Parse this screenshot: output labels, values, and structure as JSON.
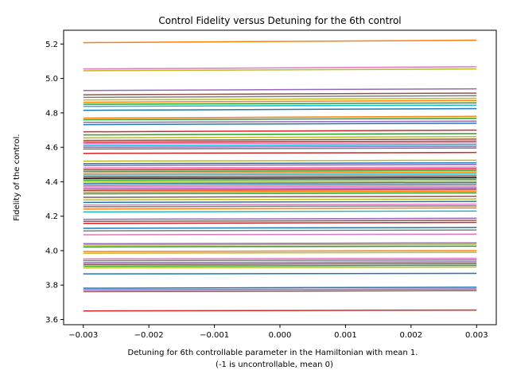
{
  "chart_data": {
    "type": "line",
    "title": "Control Fidelity versus Detuning for the 6th control",
    "xlabel_line1": "Detuning for 6th controllable parameter in the Hamiltonian with mean 1.",
    "xlabel_line2": "(-1 is uncontrollable, mean 0)",
    "ylabel": "Fidelity of the control.",
    "xlim": [
      -0.0033,
      0.0033
    ],
    "ylim": [
      3.57,
      5.28
    ],
    "x_ticks": [
      -0.003,
      -0.002,
      -0.001,
      0.0,
      0.001,
      0.002,
      0.003
    ],
    "x_tick_labels": [
      "−0.003",
      "−0.002",
      "−0.001",
      "0.000",
      "0.001",
      "0.002",
      "0.003"
    ],
    "y_ticks": [
      3.6,
      3.8,
      4.0,
      4.2,
      4.4,
      4.6,
      4.8,
      5.0,
      5.2
    ],
    "y_tick_labels": [
      "3.6",
      "3.8",
      "4.0",
      "4.2",
      "4.4",
      "4.6",
      "4.8",
      "5.0",
      "5.2"
    ],
    "grid": false,
    "legend": "none",
    "palette": [
      "#1f77b4",
      "#ff7f0e",
      "#2ca02c",
      "#d62728",
      "#9467bd",
      "#8c564b",
      "#e377c2",
      "#7f7f7f",
      "#bcbd22",
      "#17becf"
    ],
    "x": [
      -0.003,
      0.003
    ],
    "series": [
      {
        "values": [
          5.208,
          5.222
        ],
        "color": "#ff7f0e"
      },
      {
        "values": [
          5.055,
          5.068
        ],
        "color": "#e377c2"
      },
      {
        "values": [
          5.045,
          5.055
        ],
        "color": "#bcbd22"
      },
      {
        "values": [
          4.93,
          4.94
        ],
        "color": "#9467bd"
      },
      {
        "values": [
          4.905,
          4.915
        ],
        "color": "#8c564b"
      },
      {
        "values": [
          4.89,
          4.9
        ],
        "color": "#7f7f7f"
      },
      {
        "values": [
          4.875,
          4.885
        ],
        "color": "#bcbd22"
      },
      {
        "values": [
          4.862,
          4.872
        ],
        "color": "#ff7f0e"
      },
      {
        "values": [
          4.85,
          4.858
        ],
        "color": "#2ca02c"
      },
      {
        "values": [
          4.838,
          4.845
        ],
        "color": "#17becf"
      },
      {
        "values": [
          4.815,
          4.825
        ],
        "color": "#1f77b4"
      },
      {
        "values": [
          4.77,
          4.78
        ],
        "color": "#ff7f0e"
      },
      {
        "values": [
          4.76,
          4.768
        ],
        "color": "#2ca02c"
      },
      {
        "values": [
          4.745,
          4.752
        ],
        "color": "#9467bd"
      },
      {
        "values": [
          4.732,
          4.74
        ],
        "color": "#1f77b4"
      },
      {
        "values": [
          4.69,
          4.7
        ],
        "color": "#d62728"
      },
      {
        "values": [
          4.672,
          4.68
        ],
        "color": "#2ca02c"
      },
      {
        "values": [
          4.655,
          4.662
        ],
        "color": "#bcbd22"
      },
      {
        "values": [
          4.64,
          4.648
        ],
        "color": "#8c564b"
      },
      {
        "values": [
          4.63,
          4.636
        ],
        "color": "#d62728"
      },
      {
        "values": [
          4.62,
          4.626
        ],
        "color": "#e377c2"
      },
      {
        "values": [
          4.61,
          4.616
        ],
        "color": "#17becf"
      },
      {
        "values": [
          4.6,
          4.606
        ],
        "color": "#9467bd"
      },
      {
        "values": [
          4.59,
          4.596
        ],
        "color": "#7f7f7f"
      },
      {
        "values": [
          4.565,
          4.57
        ],
        "color": "#d62728"
      },
      {
        "values": [
          4.52,
          4.525
        ],
        "color": "#bcbd22"
      },
      {
        "values": [
          4.505,
          4.51
        ],
        "color": "#1f77b4"
      },
      {
        "values": [
          4.495,
          4.5
        ],
        "color": "#9467bd"
      },
      {
        "values": [
          4.48,
          4.485
        ],
        "color": "#e377c2"
      },
      {
        "values": [
          4.47,
          4.475
        ],
        "color": "#d62728"
      },
      {
        "values": [
          4.46,
          4.465
        ],
        "color": "#2ca02c"
      },
      {
        "values": [
          4.45,
          4.455
        ],
        "color": "#ff7f0e"
      },
      {
        "values": [
          4.44,
          4.445
        ],
        "color": "#17becf"
      },
      {
        "values": [
          4.43,
          4.434
        ],
        "color": "#8c564b"
      },
      {
        "values": [
          4.42,
          4.424
        ],
        "color": "#000000"
      },
      {
        "values": [
          4.41,
          4.414
        ],
        "color": "#2ca02c"
      },
      {
        "values": [
          4.4,
          4.404
        ],
        "color": "#bcbd22"
      },
      {
        "values": [
          4.39,
          4.395
        ],
        "color": "#1f77b4"
      },
      {
        "values": [
          4.38,
          4.385
        ],
        "color": "#7f7f7f"
      },
      {
        "values": [
          4.37,
          4.375
        ],
        "color": "#e377c2"
      },
      {
        "values": [
          4.36,
          4.365
        ],
        "color": "#9467bd"
      },
      {
        "values": [
          4.35,
          4.356
        ],
        "color": "#d62728"
      },
      {
        "values": [
          4.34,
          4.346
        ],
        "color": "#ff7f0e"
      },
      {
        "values": [
          4.33,
          4.336
        ],
        "color": "#2ca02c"
      },
      {
        "values": [
          4.31,
          4.316
        ],
        "color": "#8c564b"
      },
      {
        "values": [
          4.295,
          4.3
        ],
        "color": "#bcbd22"
      },
      {
        "values": [
          4.28,
          4.286
        ],
        "color": "#1f77b4"
      },
      {
        "values": [
          4.265,
          4.27
        ],
        "color": "#e377c2"
      },
      {
        "values": [
          4.255,
          4.26
        ],
        "color": "#7f7f7f"
      },
      {
        "values": [
          4.242,
          4.248
        ],
        "color": "#ff7f0e"
      },
      {
        "values": [
          4.225,
          4.23
        ],
        "color": "#17becf"
      },
      {
        "values": [
          4.182,
          4.188
        ],
        "color": "#9467bd"
      },
      {
        "values": [
          4.17,
          4.176
        ],
        "color": "#8c564b"
      },
      {
        "values": [
          4.158,
          4.164
        ],
        "color": "#d62728"
      },
      {
        "values": [
          4.13,
          4.135
        ],
        "color": "#1f77b4"
      },
      {
        "values": [
          4.115,
          4.12
        ],
        "color": "#7f7f7f"
      },
      {
        "values": [
          4.092,
          4.096
        ],
        "color": "#e377c2"
      },
      {
        "values": [
          4.04,
          4.045
        ],
        "color": "#9467bd"
      },
      {
        "values": [
          4.032,
          4.036
        ],
        "color": "#bcbd22"
      },
      {
        "values": [
          4.022,
          4.026
        ],
        "color": "#2ca02c"
      },
      {
        "values": [
          3.995,
          4.0
        ],
        "color": "#ff7f0e"
      },
      {
        "values": [
          3.985,
          3.99
        ],
        "color": "#bcbd22"
      },
      {
        "values": [
          3.952,
          3.956
        ],
        "color": "#e377c2"
      },
      {
        "values": [
          3.942,
          3.946
        ],
        "color": "#7f7f7f"
      },
      {
        "values": [
          3.93,
          3.935
        ],
        "color": "#9467bd"
      },
      {
        "values": [
          3.92,
          3.925
        ],
        "color": "#8c564b"
      },
      {
        "values": [
          3.91,
          3.915
        ],
        "color": "#2ca02c"
      },
      {
        "values": [
          3.9,
          3.905
        ],
        "color": "#bcbd22"
      },
      {
        "values": [
          3.865,
          3.868
        ],
        "color": "#1f77b4"
      },
      {
        "values": [
          3.782,
          3.788
        ],
        "color": "#1f77b4"
      },
      {
        "values": [
          3.772,
          3.778
        ],
        "color": "#9467bd"
      },
      {
        "values": [
          3.762,
          3.768
        ],
        "color": "#8c564b"
      },
      {
        "values": [
          3.65,
          3.655
        ],
        "color": "#d62728"
      }
    ]
  }
}
